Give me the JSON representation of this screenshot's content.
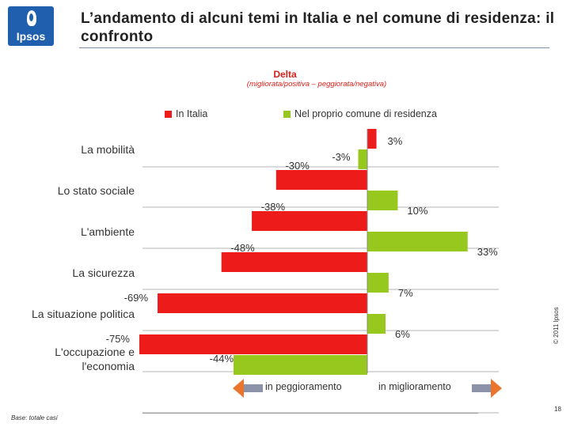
{
  "header": {
    "logo_text": "Ipsos",
    "title": "L’andamento di alcuni temi in Italia e nel comune di residenza: il confronto"
  },
  "chart_data": {
    "type": "bar",
    "orientation": "horizontal",
    "title": "Delta",
    "subtitle": "(migliorata/positiva – peggiorata/negativa)",
    "categories": [
      "La mobilità",
      "Lo stato sociale",
      "L'ambiente",
      "La sicurezza",
      "La situazione politica",
      "L'occupazione e l'economia"
    ],
    "category_lines": [
      [
        "La mobilità"
      ],
      [
        "Lo stato sociale"
      ],
      [
        "L'ambiente"
      ],
      [
        "La sicurezza"
      ],
      [
        "La situazione politica"
      ],
      [
        "L'occupazione e",
        "l'economia"
      ]
    ],
    "series": [
      {
        "name": "In Italia",
        "color": "#ee1b1b",
        "values": [
          3,
          -30,
          -38,
          -48,
          -69,
          -75
        ],
        "labels": [
          "3%",
          "-30%",
          "-38%",
          "-48%",
          "-69%",
          "-75%"
        ]
      },
      {
        "name": "Nel proprio comune di residenza",
        "color": "#96c81e",
        "values": [
          -3,
          10,
          33,
          7,
          6,
          -44
        ],
        "labels": [
          "-3%",
          "10%",
          "33%",
          "7%",
          "6%",
          "-44%"
        ]
      }
    ],
    "xlim": [
      -80,
      60
    ],
    "legend": "top",
    "axis_left_label": "in peggioramento",
    "axis_right_label": "in miglioramento"
  },
  "footer": {
    "base": "Base: totale casi",
    "page": "18",
    "copyright": "© 2011 Ipsos"
  }
}
